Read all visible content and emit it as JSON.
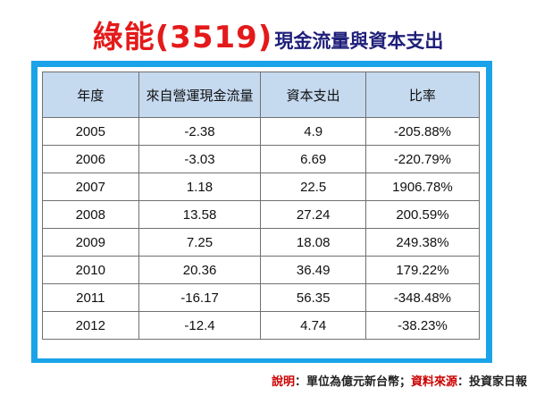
{
  "title": {
    "main": "綠能(3519)",
    "sub": "現金流量與資本支出"
  },
  "table": {
    "headers": [
      "年度",
      "來自營運現金流量",
      "資本支出",
      "比率"
    ],
    "rows": [
      [
        "2005",
        "-2.38",
        "4.9",
        "-205.88%"
      ],
      [
        "2006",
        "-3.03",
        "6.69",
        "-220.79%"
      ],
      [
        "2007",
        "1.18",
        "22.5",
        "1906.78%"
      ],
      [
        "2008",
        "13.58",
        "27.24",
        "200.59%"
      ],
      [
        "2009",
        "7.25",
        "18.08",
        "249.38%"
      ],
      [
        "2010",
        "20.36",
        "36.49",
        "179.22%"
      ],
      [
        "2011",
        "-16.17",
        "56.35",
        "-348.48%"
      ],
      [
        "2012",
        "-12.4",
        "4.74",
        "-38.23%"
      ]
    ]
  },
  "note": {
    "label1": "說明",
    "text1": "：單位為億元新台幣；",
    "label2": "資料來源",
    "text2": "：投資家日報"
  },
  "colors": {
    "title_main": "#e41a1a",
    "title_sub": "#1f1f7a",
    "frame": "#1aa3e8",
    "header_bg": "#c5d9ef"
  }
}
